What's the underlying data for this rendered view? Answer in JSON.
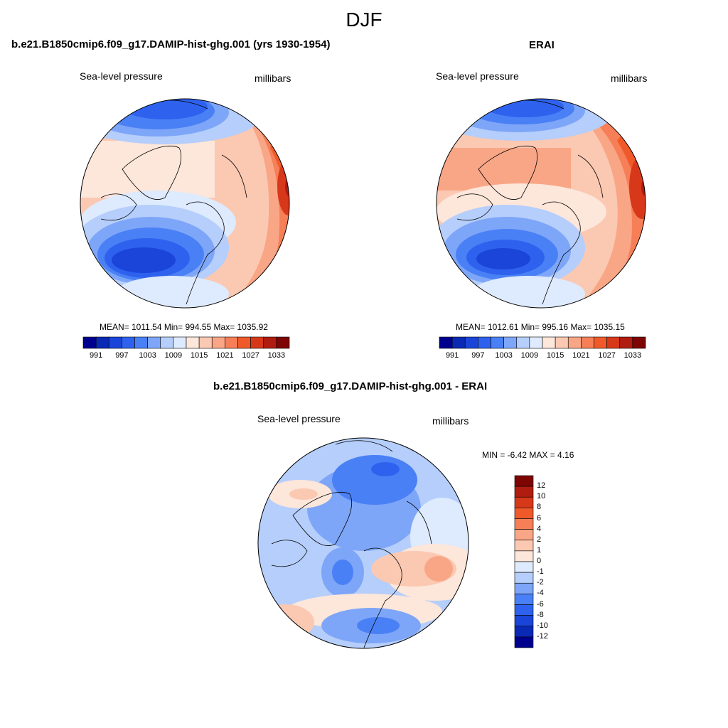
{
  "figure": {
    "title": "DJF"
  },
  "panels": {
    "model": {
      "title": "b.e21.B1850cmip6.f09_g17.DAMIP-hist-ghg.001 (yrs 1930-1954)",
      "left_label": "Sea-level pressure",
      "right_label": "millibars",
      "stats": "MEAN= 1011.54  Min= 994.55  Max= 1035.92"
    },
    "obs": {
      "title": "ERAI",
      "left_label": "Sea-level pressure",
      "right_label": "millibars",
      "stats": "MEAN= 1012.61  Min= 995.16  Max= 1035.15"
    },
    "diff": {
      "title": "b.e21.B1850cmip6.f09_g17.DAMIP-hist-ghg.001 - ERAI",
      "left_label": "Sea-level pressure",
      "right_label": "millibars",
      "stats": "MIN =  -6.42 MAX =   4.16"
    }
  },
  "colorbars": {
    "abs": {
      "ticks": [
        "991",
        "997",
        "1003",
        "1009",
        "1015",
        "1021",
        "1027",
        "1033"
      ],
      "colors": [
        "#00008f",
        "#0a2ab5",
        "#1a45d8",
        "#2e62ee",
        "#4a80f5",
        "#7ea6f8",
        "#b5cefb",
        "#deeafd",
        "#fde6da",
        "#fbc8b2",
        "#f9a686",
        "#f67f58",
        "#f05a2a",
        "#d8381a",
        "#b01c10",
        "#7d0604"
      ]
    },
    "diff": {
      "ticks": [
        "12",
        "10",
        "8",
        "6",
        "4",
        "2",
        "1",
        "0",
        "-1",
        "-2",
        "-4",
        "-6",
        "-8",
        "-10",
        "-12"
      ],
      "colors": [
        "#7d0604",
        "#b01c10",
        "#d8381a",
        "#f05a2a",
        "#f67f58",
        "#f9a686",
        "#fbc8b2",
        "#fde6da",
        "#deeafd",
        "#b5cefb",
        "#7ea6f8",
        "#4a80f5",
        "#2e62ee",
        "#1a45d8",
        "#0a2ab5",
        "#00008f"
      ]
    }
  }
}
